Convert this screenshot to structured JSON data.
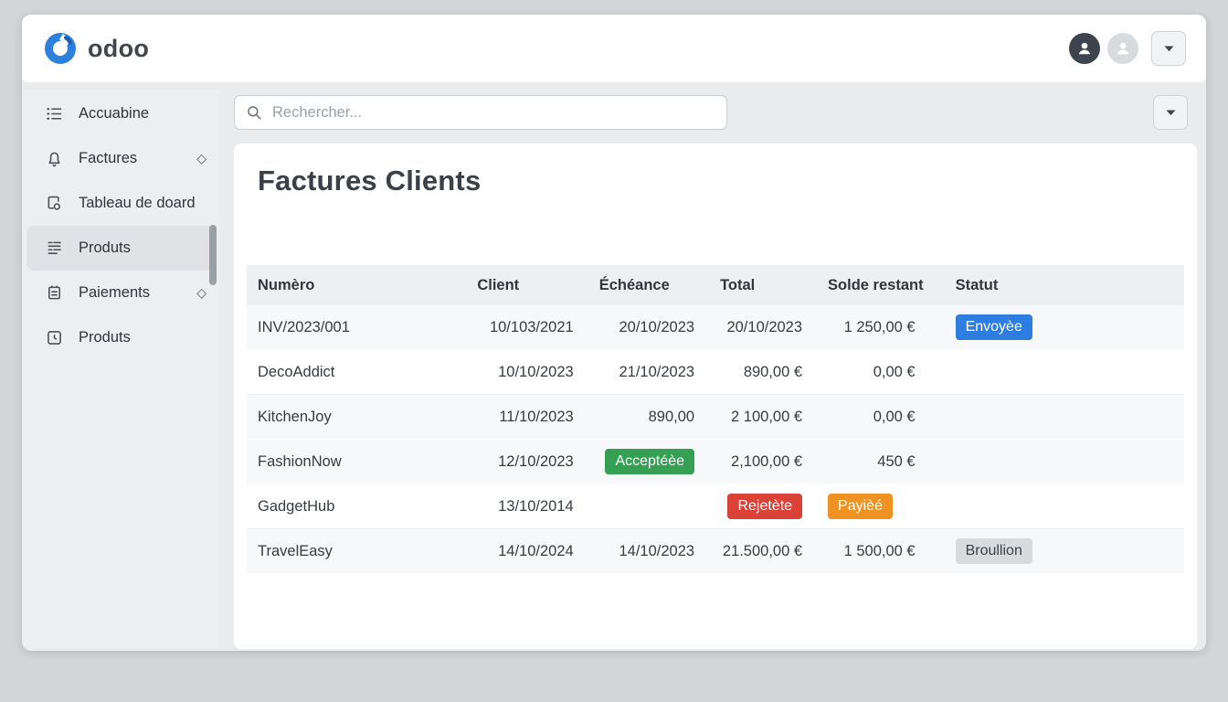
{
  "topbar": {
    "brand": "odoo"
  },
  "search": {
    "placeholder": "Rechercher..."
  },
  "sidebar": {
    "items": [
      {
        "label": "Accuabine",
        "icon": "list-icon",
        "diamond": false,
        "active": false
      },
      {
        "label": "Factures",
        "icon": "bell-icon",
        "diamond": true,
        "active": false
      },
      {
        "label": "Tableau de doard",
        "icon": "copy-circle-icon",
        "diamond": false,
        "active": false
      },
      {
        "label": "Produts",
        "icon": "lines-icon",
        "diamond": false,
        "active": true
      },
      {
        "label": "Paiements",
        "icon": "note-icon",
        "diamond": true,
        "active": false
      },
      {
        "label": "Produts",
        "icon": "clock-icon",
        "diamond": false,
        "active": false
      }
    ]
  },
  "badge_colors": {
    "blue": "#2d7ee0",
    "green": "#35a053",
    "red": "#da4238",
    "orange": "#ef9221",
    "gray": "#d8dbde"
  },
  "main": {
    "title": "Factures Clients",
    "table": {
      "columns": [
        "Numèro",
        "Client",
        "Échéance",
        "Total",
        "Solde restant",
        "Statut"
      ],
      "rows": [
        {
          "shaded": true,
          "cells": [
            {
              "text": "INV/2023/001"
            },
            {
              "text": "10/103/2021"
            },
            {
              "text": "20/10/2023"
            },
            {
              "text": "20/10/2023"
            },
            {
              "text": "1 250,00 €"
            },
            {
              "badge": "Envoyèe",
              "color": "blue"
            }
          ]
        },
        {
          "shaded": false,
          "cells": [
            {
              "text": "DecoAddict"
            },
            {
              "text": "10/10/2023"
            },
            {
              "text": "21/10/2023"
            },
            {
              "text": "890,00 €"
            },
            {
              "text": "0,00 €"
            },
            {}
          ]
        },
        {
          "shaded": true,
          "cells": [
            {
              "text": "KitchenJoy"
            },
            {
              "text": "11/10/2023"
            },
            {
              "text": "890,00"
            },
            {
              "text": "2 100,00 €"
            },
            {
              "text": "0,00 €"
            },
            {}
          ]
        },
        {
          "shaded": true,
          "cells": [
            {
              "text": "FashionNow"
            },
            {
              "text": "12/10/2023"
            },
            {
              "badge": "Acceptéèe",
              "color": "green"
            },
            {
              "text": "2,100,00 €"
            },
            {
              "text": "450 €"
            },
            {}
          ]
        },
        {
          "shaded": false,
          "cells": [
            {
              "text": "GadgetHub"
            },
            {
              "text": "13/10/2014"
            },
            {},
            {
              "badge": "Rejetète",
              "color": "red"
            },
            {
              "badge": "Payièé",
              "color": "orange",
              "align": "left"
            },
            {}
          ]
        },
        {
          "shaded": true,
          "cells": [
            {
              "text": "TravelEasy"
            },
            {
              "text": "14/10/2024"
            },
            {
              "text": "14/10/2023"
            },
            {
              "text": "21.500,00 €"
            },
            {
              "text": "1 500,00 €"
            },
            {
              "badge": "Broullion",
              "color": "gray"
            }
          ]
        }
      ]
    }
  }
}
